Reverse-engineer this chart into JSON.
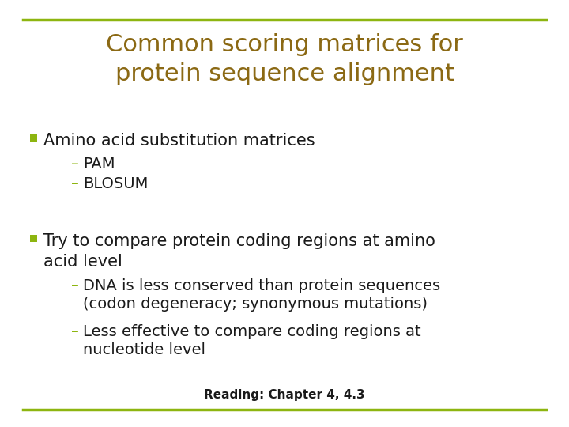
{
  "title_line1": "Common scoring matrices for",
  "title_line2": "protein sequence alignment",
  "title_color": "#8B6914",
  "title_fontsize": 22,
  "background_color": "#FFFFFF",
  "border_color": "#8DB510",
  "border_linewidth": 2.5,
  "bullet_color": "#8DB510",
  "bullet1_text": "Amino acid substitution matrices",
  "bullet1_fontsize": 15,
  "sub1_items": [
    "PAM",
    "BLOSUM"
  ],
  "sub1_fontsize": 14,
  "bullet2_line1": "Try to compare protein coding regions at amino\nacid level",
  "bullet2_fontsize": 15,
  "sub2_items": [
    "DNA is less conserved than protein sequences\n(codon degeneracy; synonymous mutations)",
    "Less effective to compare coding regions at\nnucleotide level"
  ],
  "sub2_fontsize": 14,
  "text_color": "#1A1A1A",
  "dash_color": "#8DB510",
  "footer_text": "Reading: Chapter 4, 4.3",
  "footer_fontsize": 11
}
